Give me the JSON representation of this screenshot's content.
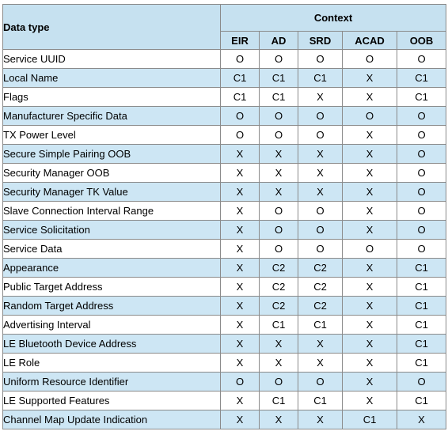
{
  "header": {
    "context_label": "Context",
    "data_type_label": "Data type",
    "columns": [
      "EIR",
      "AD",
      "SRD",
      "ACAD",
      "OOB"
    ]
  },
  "rows": [
    {
      "name": "Service UUID",
      "values": [
        "O",
        "O",
        "O",
        "O",
        "O"
      ]
    },
    {
      "name": "Local Name",
      "values": [
        "C1",
        "C1",
        "C1",
        "X",
        "C1"
      ]
    },
    {
      "name": "Flags",
      "values": [
        "C1",
        "C1",
        "X",
        "X",
        "C1"
      ]
    },
    {
      "name": "Manufacturer Specific Data",
      "values": [
        "O",
        "O",
        "O",
        "O",
        "O"
      ]
    },
    {
      "name": "TX Power Level",
      "values": [
        "O",
        "O",
        "O",
        "X",
        "O"
      ]
    },
    {
      "name": "Secure Simple Pairing OOB",
      "values": [
        "X",
        "X",
        "X",
        "X",
        "O"
      ]
    },
    {
      "name": "Security Manager OOB",
      "values": [
        "X",
        "X",
        "X",
        "X",
        "O"
      ]
    },
    {
      "name": "Security Manager TK Value",
      "values": [
        "X",
        "X",
        "X",
        "X",
        "O"
      ]
    },
    {
      "name": "Slave Connection Interval Range",
      "values": [
        "X",
        "O",
        "O",
        "X",
        "O"
      ]
    },
    {
      "name": "Service Solicitation",
      "values": [
        "X",
        "O",
        "O",
        "X",
        "O"
      ]
    },
    {
      "name": "Service Data",
      "values": [
        "X",
        "O",
        "O",
        "O",
        "O"
      ]
    },
    {
      "name": "Appearance",
      "values": [
        "X",
        "C2",
        "C2",
        "X",
        "C1"
      ]
    },
    {
      "name": "Public Target Address",
      "values": [
        "X",
        "C2",
        "C2",
        "X",
        "C1"
      ]
    },
    {
      "name": "Random Target Address",
      "values": [
        "X",
        "C2",
        "C2",
        "X",
        "C1"
      ]
    },
    {
      "name": "Advertising Interval",
      "values": [
        "X",
        "C1",
        "C1",
        "X",
        "C1"
      ]
    },
    {
      "name": "LE Bluetooth Device Address",
      "values": [
        "X",
        "X",
        "X",
        "X",
        "C1"
      ]
    },
    {
      "name": "LE Role",
      "values": [
        "X",
        "X",
        "X",
        "X",
        "C1"
      ]
    },
    {
      "name": "Uniform Resource Identifier",
      "values": [
        "O",
        "O",
        "O",
        "X",
        "O"
      ]
    },
    {
      "name": "LE Supported Features",
      "values": [
        "X",
        "C1",
        "C1",
        "X",
        "C1"
      ]
    },
    {
      "name": "Channel Map Update Indication",
      "values": [
        "X",
        "X",
        "X",
        "C1",
        "X"
      ]
    }
  ]
}
